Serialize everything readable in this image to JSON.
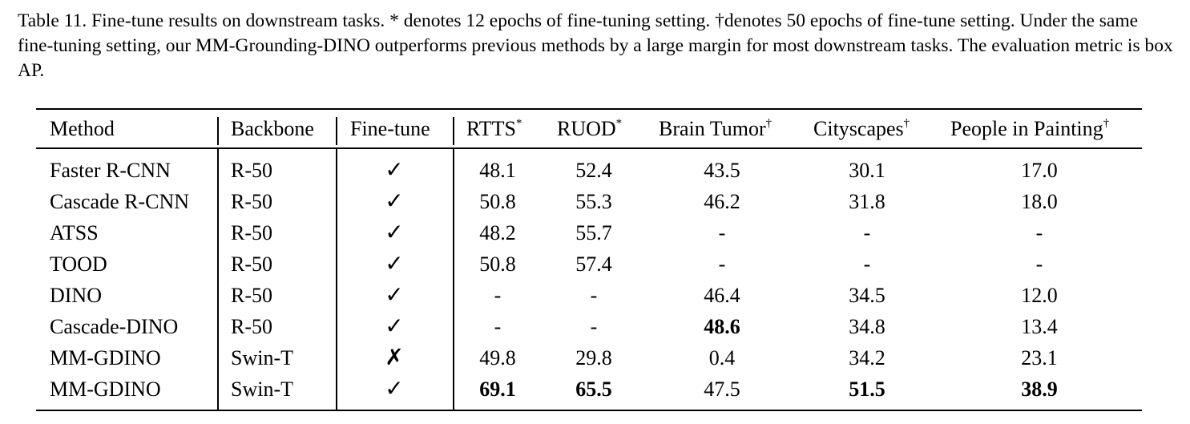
{
  "caption": "Table 11. Fine-tune results on downstream tasks. * denotes 12 epochs of fine-tuning setting. †denotes 50 epochs of fine-tune setting. Under the same fine-tuning setting, our MM-Grounding-DINO outperforms previous methods by a large margin for most downstream tasks. The evaluation metric is box AP.",
  "columns": [
    {
      "label": "Method",
      "mark": ""
    },
    {
      "label": "Backbone",
      "mark": ""
    },
    {
      "label": "Fine-tune",
      "mark": ""
    },
    {
      "label": "RTTS",
      "mark": "*"
    },
    {
      "label": "RUOD",
      "mark": "*"
    },
    {
      "label": "Brain Tumor",
      "mark": "†"
    },
    {
      "label": "Cityscapes",
      "mark": "†"
    },
    {
      "label": "People in Painting",
      "mark": "†"
    }
  ],
  "rows": [
    {
      "method": "Faster R-CNN",
      "backbone": "R-50",
      "finetune": "✓",
      "rtts": "48.1",
      "ruod": "52.4",
      "brain": "43.5",
      "city": "30.1",
      "people": "17.0",
      "bold": []
    },
    {
      "method": "Cascade R-CNN",
      "backbone": "R-50",
      "finetune": "✓",
      "rtts": "50.8",
      "ruod": "55.3",
      "brain": "46.2",
      "city": "31.8",
      "people": "18.0",
      "bold": []
    },
    {
      "method": "ATSS",
      "backbone": "R-50",
      "finetune": "✓",
      "rtts": "48.2",
      "ruod": "55.7",
      "brain": "-",
      "city": "-",
      "people": "-",
      "bold": []
    },
    {
      "method": "TOOD",
      "backbone": "R-50",
      "finetune": "✓",
      "rtts": "50.8",
      "ruod": "57.4",
      "brain": "-",
      "city": "-",
      "people": "-",
      "bold": []
    },
    {
      "method": "DINO",
      "backbone": "R-50",
      "finetune": "✓",
      "rtts": "-",
      "ruod": "-",
      "brain": "46.4",
      "city": "34.5",
      "people": "12.0",
      "bold": []
    },
    {
      "method": "Cascade-DINO",
      "backbone": "R-50",
      "finetune": "✓",
      "rtts": "-",
      "ruod": "-",
      "brain": "48.6",
      "city": "34.8",
      "people": "13.4",
      "bold": [
        "brain"
      ]
    },
    {
      "method": "MM-GDINO",
      "backbone": "Swin-T",
      "finetune": "✗",
      "rtts": "49.8",
      "ruod": "29.8",
      "brain": "0.4",
      "city": "34.2",
      "people": "23.1",
      "bold": []
    },
    {
      "method": "MM-GDINO",
      "backbone": "Swin-T",
      "finetune": "✓",
      "rtts": "69.1",
      "ruod": "65.5",
      "brain": "47.5",
      "city": "51.5",
      "people": "38.9",
      "bold": [
        "rtts",
        "ruod",
        "city",
        "people"
      ]
    }
  ]
}
